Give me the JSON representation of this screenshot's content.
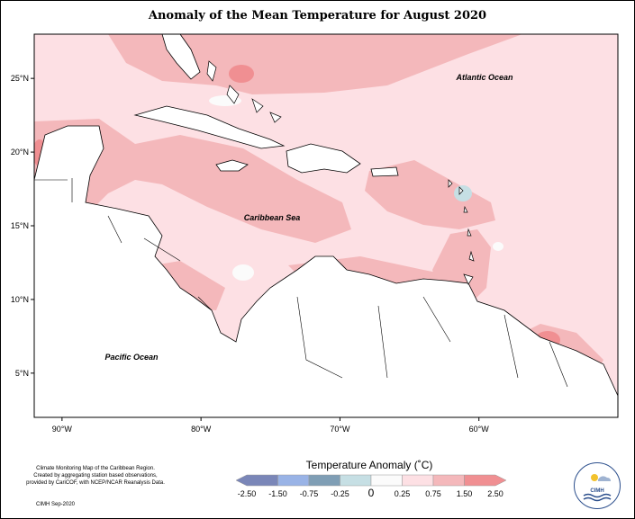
{
  "title": "Anomaly of the Mean Temperature for August 2020",
  "map": {
    "lat_labels": [
      {
        "value": 25,
        "text": "25°N"
      },
      {
        "value": 20,
        "text": "20°N"
      },
      {
        "value": 15,
        "text": "15°N"
      },
      {
        "value": 10,
        "text": "10°N"
      },
      {
        "value": 5,
        "text": "5°N"
      }
    ],
    "lon_labels": [
      {
        "value": -90,
        "text": "90°W"
      },
      {
        "value": -80,
        "text": "80°W"
      },
      {
        "value": -70,
        "text": "70°W"
      },
      {
        "value": -60,
        "text": "60°W"
      }
    ],
    "lon_range": [
      -92,
      -50
    ],
    "lat_range": [
      2,
      28
    ],
    "place_labels": {
      "atlantic": "Atlantic Ocean",
      "caribbean": "Caribbean Sea",
      "pacific": "Pacific Ocean"
    }
  },
  "legend": {
    "title": "Temperature Anomaly (˚C)",
    "ticks": [
      "-2.50",
      "-1.50",
      "-0.75",
      "-0.25",
      "0",
      "0.25",
      "0.75",
      "1.50",
      "2.50"
    ],
    "colors": [
      "#7a86b8",
      "#99b3e6",
      "#7f9eb5",
      "#c6dfe4",
      "#fbfbfb",
      "#fde0e4",
      "#f4b8bb",
      "#f08f92"
    ]
  },
  "footer": {
    "lines": [
      "Climate Monitoring Map of the Caribbean Region.",
      "Created by aggregating station based observations,",
      "provided by CariCOF, with NCEP/NCAR Reanalysis Data."
    ],
    "date": "CIMH Sep-2020"
  },
  "logo": {
    "text": "CIMH",
    "icon": "cimh-logo-icon"
  }
}
